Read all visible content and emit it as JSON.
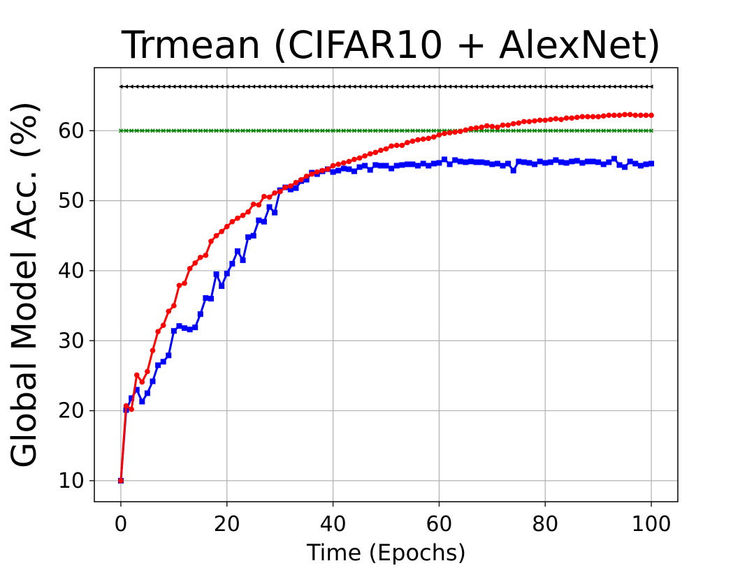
{
  "chart_data": {
    "type": "line",
    "title": "Trmean (CIFAR10 + AlexNet)",
    "xlabel": "Time (Epochs)",
    "ylabel": "Global Model Acc. (%)",
    "xlim": [
      -5,
      105
    ],
    "ylim": [
      7,
      69
    ],
    "xticks": [
      0,
      20,
      40,
      60,
      80,
      100
    ],
    "yticks": [
      10,
      20,
      30,
      40,
      50,
      60
    ],
    "grid": true,
    "legend": "none",
    "series": [
      {
        "color": "#000000",
        "marker": "triangle-left",
        "x_start": 0,
        "x_end": 100,
        "x_step": 1,
        "y_constant": 66.3
      },
      {
        "color": "#008000",
        "marker": "x",
        "x_start": 0,
        "x_end": 100,
        "x_step": 1,
        "y_constant": 60.0
      },
      {
        "color": "#0000ff",
        "marker": "square",
        "x_start": 0,
        "x_step": 1,
        "values": [
          10.0,
          20.1,
          21.8,
          23.0,
          21.3,
          22.5,
          24.2,
          26.5,
          27.0,
          27.9,
          31.4,
          32.1,
          31.8,
          31.6,
          31.9,
          33.8,
          36.1,
          36.0,
          39.5,
          37.8,
          39.6,
          41.0,
          42.8,
          41.5,
          44.8,
          45.0,
          47.2,
          47.0,
          49.1,
          48.3,
          51.5,
          51.9,
          51.6,
          51.8,
          52.8,
          53.0,
          54.0,
          53.8,
          54.2,
          54.5,
          54.1,
          54.3,
          54.6,
          54.5,
          54.2,
          54.8,
          55.0,
          54.4,
          55.1,
          55.0,
          55.0,
          54.6,
          55.0,
          55.1,
          55.2,
          55.2,
          55.0,
          55.3,
          55.0,
          55.3,
          55.4,
          55.9,
          55.2,
          55.8,
          55.6,
          55.5,
          55.6,
          55.5,
          55.5,
          55.4,
          55.2,
          55.3,
          55.0,
          55.3,
          54.3,
          55.6,
          55.5,
          55.4,
          55.2,
          55.6,
          55.4,
          55.5,
          55.8,
          55.5,
          55.4,
          55.6,
          55.7,
          55.4,
          55.6,
          55.6,
          55.5,
          55.2,
          55.5,
          56.0,
          55.1,
          54.8,
          55.6,
          55.3,
          55.0,
          55.2,
          55.3
        ]
      },
      {
        "color": "#ff0000",
        "marker": "circle",
        "x_start": 0,
        "x_step": 1,
        "values": [
          10.0,
          20.7,
          20.2,
          25.1,
          24.1,
          25.6,
          28.6,
          31.3,
          32.2,
          34.2,
          35.0,
          37.9,
          38.2,
          40.3,
          41.1,
          41.9,
          42.2,
          44.2,
          45.0,
          45.6,
          46.3,
          47.0,
          47.5,
          47.9,
          48.4,
          49.5,
          49.4,
          50.6,
          50.5,
          51.1,
          51.3,
          51.9,
          52.1,
          52.6,
          53.0,
          53.5,
          53.8,
          54.1,
          54.3,
          54.5,
          55.0,
          55.2,
          55.4,
          55.6,
          55.9,
          56.1,
          56.4,
          56.7,
          56.9,
          57.2,
          57.4,
          57.8,
          57.9,
          57.9,
          58.3,
          58.5,
          58.7,
          58.8,
          58.9,
          59.1,
          59.4,
          59.6,
          59.7,
          59.8,
          59.9,
          60.1,
          60.3,
          60.4,
          60.5,
          60.7,
          60.6,
          60.5,
          60.8,
          60.8,
          61.0,
          61.1,
          61.3,
          61.3,
          61.4,
          61.5,
          61.5,
          61.6,
          61.7,
          61.6,
          61.8,
          61.8,
          61.9,
          62.0,
          62.0,
          62.0,
          62.0,
          62.1,
          62.2,
          62.2,
          62.2,
          62.3,
          62.3,
          62.2,
          62.2,
          62.2,
          62.2
        ]
      }
    ]
  }
}
